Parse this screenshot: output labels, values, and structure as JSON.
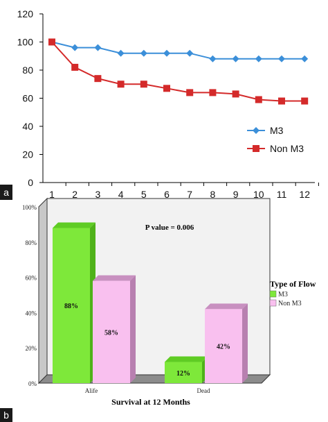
{
  "panels": {
    "a_label": "a",
    "b_label": "b"
  },
  "colors": {
    "m3_line": "#3b8fd9",
    "nonm3_line": "#d42a2a",
    "bar_green": "#7ee83a",
    "bar_green_side": "#4fb21a",
    "bar_pink": "#f9c0ef",
    "bar_pink_side": "#b880b0",
    "panel_badge": "#1a1a1a"
  },
  "chart_data": [
    {
      "type": "line",
      "x": [
        1,
        2,
        3,
        4,
        5,
        6,
        7,
        8,
        9,
        10,
        11,
        12
      ],
      "series": [
        {
          "name": "M3",
          "values": [
            100,
            96,
            96,
            92,
            92,
            92,
            92,
            88,
            88,
            88,
            88,
            88
          ]
        },
        {
          "name": "Non M3",
          "values": [
            100,
            82,
            74,
            70,
            70,
            67,
            64,
            64,
            63,
            59,
            58,
            58
          ]
        }
      ],
      "yticks": [
        0,
        20,
        40,
        60,
        80,
        100,
        120
      ],
      "xticks": [
        "1",
        "2",
        "3",
        "4",
        "5",
        "6",
        "7",
        "8",
        "9",
        "10",
        "11",
        "12"
      ],
      "ylim": [
        0,
        120
      ],
      "grid": false,
      "legend": "right"
    },
    {
      "type": "bar",
      "categories": [
        "Alife",
        "Dead"
      ],
      "series": [
        {
          "name": "M3",
          "values": [
            88,
            12
          ],
          "labels": [
            "88%",
            "12%"
          ]
        },
        {
          "name": "Non M3",
          "values": [
            58,
            42
          ],
          "labels": [
            "58%",
            "42%"
          ]
        }
      ],
      "yticks": [
        "0%",
        "20%",
        "40%",
        "60%",
        "80%",
        "100%"
      ],
      "ylim": [
        0,
        100
      ],
      "xlabel": "Survival at 12 Months",
      "annotation": "P value = 0.006",
      "legend_title": "Type of Flow",
      "legend": "right"
    }
  ]
}
